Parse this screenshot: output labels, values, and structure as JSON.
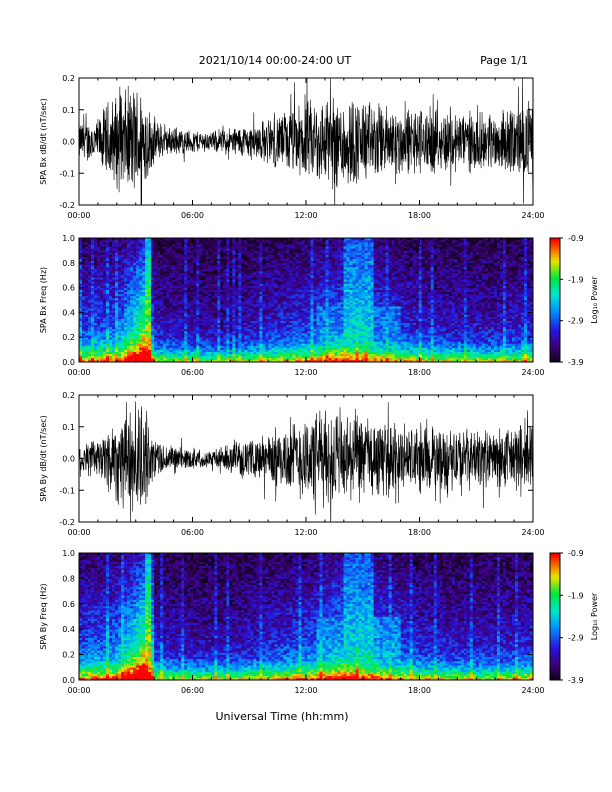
{
  "header": {
    "title": "2021/10/14  00:00-24:00 UT",
    "page": "Page 1/1"
  },
  "footer": {
    "xlabel": "Universal Time (hh:mm)"
  },
  "chart_data": [
    {
      "type": "line",
      "ylabel": "SPA Bx dB/dt (nT/sec)",
      "xlim": [
        "00:00",
        "24:00"
      ],
      "ylim": [
        -0.2,
        0.2
      ],
      "x_ticks": [
        "00:00",
        "06:00",
        "12:00",
        "18:00",
        "24:00"
      ],
      "y_ticks": [
        "-0.2",
        "-0.1",
        "0.0",
        "0.1",
        "0.2"
      ],
      "envelope_x_hours": [
        0,
        1,
        1.5,
        2,
        3,
        3.4,
        3.8,
        4.5,
        5,
        6,
        7,
        8,
        9,
        10,
        11,
        12,
        13,
        14,
        15,
        16,
        17,
        18,
        19,
        20,
        21,
        22,
        23,
        24
      ],
      "envelope_amplitude": [
        0.07,
        0.08,
        0.14,
        0.17,
        0.2,
        0.2,
        0.1,
        0.05,
        0.05,
        0.04,
        0.035,
        0.05,
        0.06,
        0.08,
        0.11,
        0.14,
        0.16,
        0.17,
        0.15,
        0.13,
        0.12,
        0.12,
        0.11,
        0.11,
        0.1,
        0.1,
        0.12,
        0.15
      ],
      "color": "#000000"
    },
    {
      "type": "heatmap",
      "ylabel": "SPA Bx Freq (Hz)",
      "xlim": [
        "00:00",
        "24:00"
      ],
      "ylim": [
        0.0,
        1.0
      ],
      "x_ticks": [
        "00:00",
        "06:00",
        "12:00",
        "18:00",
        "24:00"
      ],
      "y_ticks": [
        "0.0",
        "0.2",
        "0.4",
        "0.6",
        "0.8",
        "1.0"
      ],
      "colorbar": {
        "label": "Log₁₀ Power",
        "ticks": [
          "-0.9",
          "-1.9",
          "-2.9",
          "-3.9"
        ],
        "range": [
          -3.9,
          -0.9
        ]
      },
      "bands": [
        {
          "start_hour": 3.5,
          "end_hour": 3.8,
          "level": 0.85,
          "reach": 1.0
        },
        {
          "start_hour": 14.0,
          "end_hour": 15.5,
          "level": 0.55,
          "reach": 1.0
        },
        {
          "start_hour": 12.5,
          "end_hour": 17.0,
          "level": 0.4,
          "reach": 0.45
        }
      ],
      "profile_hours": [
        0,
        2,
        3.6,
        4,
        6,
        8,
        10,
        12,
        13,
        14,
        15,
        16,
        17,
        18,
        20,
        22,
        24
      ],
      "profile_level": [
        0.35,
        0.4,
        0.9,
        0.25,
        0.2,
        0.2,
        0.28,
        0.35,
        0.42,
        0.5,
        0.45,
        0.38,
        0.32,
        0.28,
        0.25,
        0.24,
        0.3
      ],
      "low_freq_bias": 0.6
    },
    {
      "type": "line",
      "ylabel": "SPA By dB/dt (nT/sec)",
      "xlim": [
        "00:00",
        "24:00"
      ],
      "ylim": [
        -0.2,
        0.2
      ],
      "x_ticks": [
        "00:00",
        "06:00",
        "12:00",
        "18:00",
        "24:00"
      ],
      "y_ticks": [
        "-0.2",
        "-0.1",
        "0.0",
        "0.1",
        "0.2"
      ],
      "envelope_x_hours": [
        0,
        1,
        1.5,
        2,
        3,
        3.4,
        3.8,
        4.5,
        5,
        6,
        7,
        8,
        9,
        10,
        11,
        12,
        13,
        14,
        15,
        16,
        17,
        18,
        19,
        20,
        21,
        22,
        23,
        24
      ],
      "envelope_amplitude": [
        0.06,
        0.07,
        0.12,
        0.16,
        0.2,
        0.2,
        0.09,
        0.05,
        0.045,
        0.035,
        0.03,
        0.05,
        0.06,
        0.09,
        0.12,
        0.15,
        0.17,
        0.17,
        0.15,
        0.13,
        0.12,
        0.12,
        0.11,
        0.11,
        0.1,
        0.1,
        0.12,
        0.15
      ],
      "color": "#000000"
    },
    {
      "type": "heatmap",
      "ylabel": "SPA By Freq (Hz)",
      "xlim": [
        "00:00",
        "24:00"
      ],
      "ylim": [
        0.0,
        1.0
      ],
      "x_ticks": [
        "00:00",
        "06:00",
        "12:00",
        "18:00",
        "24:00"
      ],
      "y_ticks": [
        "0.0",
        "0.2",
        "0.4",
        "0.6",
        "0.8",
        "1.0"
      ],
      "colorbar": {
        "label": "Log₁₀ Power",
        "ticks": [
          "-0.9",
          "-1.9",
          "-2.9",
          "-3.9"
        ],
        "range": [
          -3.9,
          -0.9
        ]
      },
      "bands": [
        {
          "start_hour": 3.5,
          "end_hour": 3.8,
          "level": 0.85,
          "reach": 1.0
        },
        {
          "start_hour": 14.0,
          "end_hour": 15.5,
          "level": 0.55,
          "reach": 1.0
        },
        {
          "start_hour": 12.5,
          "end_hour": 17.0,
          "level": 0.45,
          "reach": 0.5
        }
      ],
      "profile_hours": [
        0,
        2,
        3.6,
        4,
        6,
        8,
        10,
        12,
        13,
        14,
        15,
        16,
        17,
        18,
        20,
        22,
        24
      ],
      "profile_level": [
        0.38,
        0.45,
        0.9,
        0.28,
        0.22,
        0.22,
        0.3,
        0.38,
        0.46,
        0.55,
        0.5,
        0.42,
        0.36,
        0.3,
        0.27,
        0.25,
        0.3
      ],
      "low_freq_bias": 0.6
    }
  ]
}
